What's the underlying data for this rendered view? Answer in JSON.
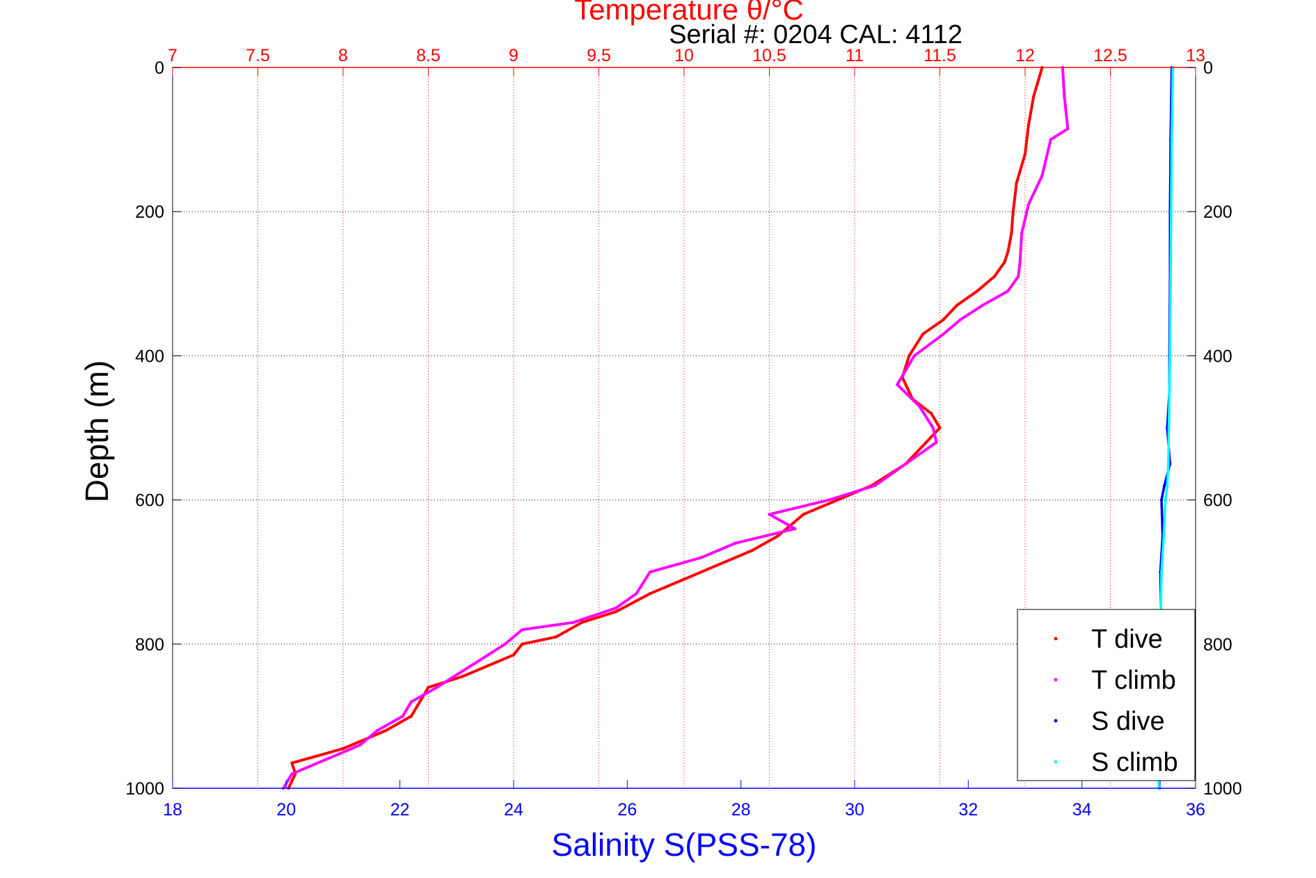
{
  "chart_data": {
    "type": "scatter",
    "title": "Temperature θ/°C",
    "subtitle": "Serial #: 0204  CAL: 4112",
    "ylabel": "Depth (m)",
    "xlabel": "Salinity S(PSS-78)",
    "y_axis": {
      "range": [
        0,
        1000
      ],
      "reversed": true,
      "ticks": [
        0,
        200,
        400,
        600,
        800,
        1000
      ]
    },
    "x_top": {
      "name": "Temperature",
      "range": [
        7,
        13
      ],
      "ticks": [
        7,
        7.5,
        8,
        8.5,
        9,
        9.5,
        10,
        10.5,
        11,
        11.5,
        12,
        12.5,
        13
      ],
      "grid": true
    },
    "x_bottom": {
      "name": "Salinity",
      "range": [
        18,
        36
      ],
      "ticks": [
        18,
        20,
        22,
        24,
        26,
        28,
        30,
        32,
        34,
        36
      ],
      "grid": false
    },
    "legend": {
      "placement": "bottom-right",
      "entries": [
        "T dive",
        "T climb",
        "S dive",
        "S climb"
      ]
    },
    "series": [
      {
        "name": "T dive",
        "axis": "top",
        "color": "#ff0000",
        "x": [
          12.1,
          12.05,
          12.02,
          12.0,
          11.95,
          11.93,
          11.92,
          11.9,
          11.88,
          11.82,
          11.72,
          11.6,
          11.52,
          11.4,
          11.32,
          11.28,
          11.34,
          11.45,
          11.5,
          11.42,
          11.3,
          11.1,
          10.9,
          10.7,
          10.55,
          10.4,
          10.2,
          10.0,
          9.8,
          9.6,
          9.4,
          9.25,
          9.05,
          9.0,
          8.85,
          8.7,
          8.5,
          8.45,
          8.4,
          8.25,
          8.1,
          8.0,
          7.85,
          7.7,
          7.72,
          7.68
        ],
        "y": [
          0,
          40,
          80,
          120,
          160,
          200,
          230,
          255,
          270,
          290,
          310,
          330,
          350,
          370,
          400,
          430,
          460,
          480,
          500,
          520,
          550,
          580,
          600,
          620,
          650,
          670,
          690,
          710,
          730,
          755,
          770,
          790,
          800,
          815,
          830,
          845,
          860,
          880,
          900,
          920,
          935,
          945,
          955,
          965,
          980,
          1000
        ]
      },
      {
        "name": "T climb",
        "axis": "top",
        "color": "#ff00ff",
        "x": [
          12.22,
          12.23,
          12.25,
          12.15,
          12.1,
          12.02,
          11.98,
          11.97,
          11.96,
          11.9,
          11.75,
          11.62,
          11.52,
          11.35,
          11.25,
          11.38,
          11.46,
          11.48,
          11.3,
          11.12,
          10.85,
          10.5,
          10.65,
          10.3,
          10.1,
          9.8,
          9.72,
          9.6,
          9.35,
          9.05,
          8.95,
          8.75,
          8.55,
          8.4,
          8.35,
          8.2,
          8.1,
          7.9,
          7.7,
          7.65
        ],
        "y": [
          0,
          40,
          85,
          100,
          150,
          190,
          230,
          270,
          290,
          310,
          330,
          350,
          370,
          400,
          440,
          470,
          500,
          520,
          550,
          580,
          600,
          620,
          640,
          660,
          680,
          700,
          730,
          750,
          770,
          780,
          800,
          830,
          860,
          880,
          900,
          920,
          940,
          960,
          980,
          1000
        ]
      },
      {
        "name": "S dive",
        "axis": "bottom",
        "color": "#0000ff",
        "x": [
          35.58,
          35.56,
          35.55,
          35.55,
          35.54,
          35.54,
          35.5,
          35.55,
          35.45,
          35.4,
          35.42,
          35.38,
          35.4,
          35.38,
          35.36
        ],
        "y": [
          0,
          100,
          200,
          300,
          400,
          450,
          500,
          550,
          580,
          600,
          650,
          700,
          800,
          900,
          1000
        ]
      },
      {
        "name": "S climb",
        "axis": "bottom",
        "color": "#00ffff",
        "x": [
          35.6,
          35.58,
          35.57,
          35.56,
          35.55,
          35.54,
          35.53,
          35.52,
          35.5,
          35.47,
          35.44,
          35.4,
          35.38,
          35.36,
          35.35
        ],
        "y": [
          0,
          100,
          200,
          300,
          400,
          450,
          500,
          550,
          580,
          600,
          650,
          700,
          800,
          900,
          1000
        ]
      }
    ]
  }
}
